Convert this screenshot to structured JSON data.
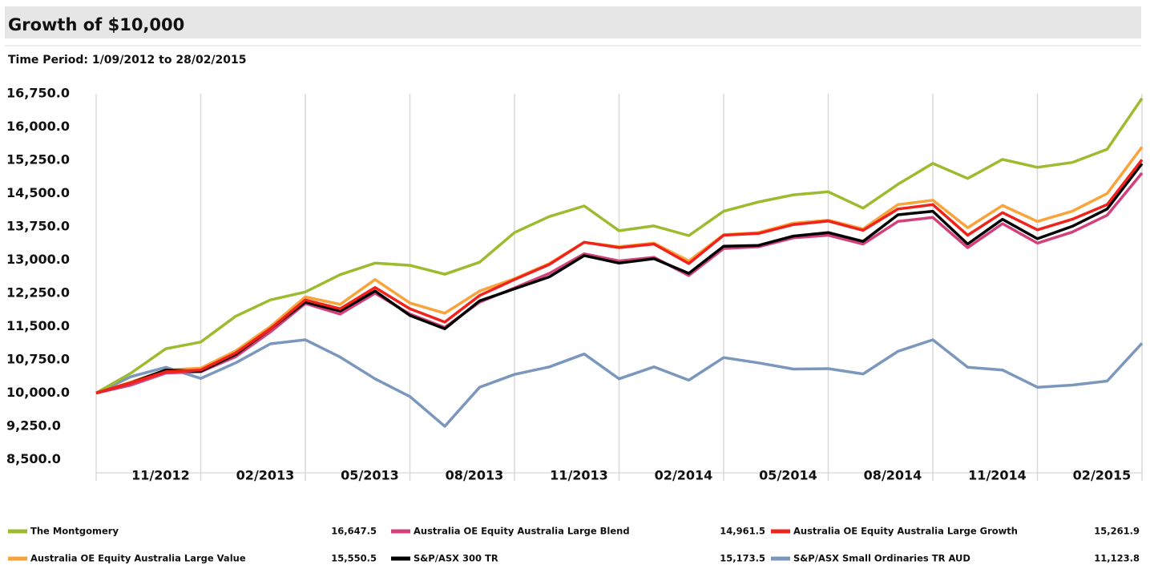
{
  "chart_data": {
    "type": "line",
    "title": "Growth of $10,000",
    "subtitle": "Time Period: 1/09/2012 to 28/02/2015",
    "x": [
      0,
      1,
      2,
      3,
      4,
      5,
      6,
      7,
      8,
      9,
      10,
      11,
      12,
      13,
      14,
      15,
      16,
      17,
      18,
      19,
      20,
      21,
      22,
      23,
      24,
      25,
      26,
      27,
      28,
      29,
      30
    ],
    "xlim": [
      0,
      30
    ],
    "xticks": [
      {
        "value": 3,
        "label": "11/2012"
      },
      {
        "value": 6,
        "label": "02/2013"
      },
      {
        "value": 9,
        "label": "05/2013"
      },
      {
        "value": 12,
        "label": "08/2013"
      },
      {
        "value": 15,
        "label": "11/2013"
      },
      {
        "value": 18,
        "label": "02/2014"
      },
      {
        "value": 21,
        "label": "05/2014"
      },
      {
        "value": 24,
        "label": "08/2014"
      },
      {
        "value": 27,
        "label": "11/2014"
      },
      {
        "value": 30,
        "label": "02/2015"
      }
    ],
    "ylim": [
      8200,
      16750
    ],
    "yticks": [
      {
        "value": 8500,
        "label": "8,500.0"
      },
      {
        "value": 9250,
        "label": "9,250.0"
      },
      {
        "value": 10000,
        "label": "10,000.0"
      },
      {
        "value": 10750,
        "label": "10,750.0"
      },
      {
        "value": 11500,
        "label": "11,500.0"
      },
      {
        "value": 12250,
        "label": "12,250.0"
      },
      {
        "value": 13000,
        "label": "13,000.0"
      },
      {
        "value": 13750,
        "label": "13,750.0"
      },
      {
        "value": 14500,
        "label": "14,500.0"
      },
      {
        "value": 15250,
        "label": "15,250.0"
      },
      {
        "value": 16000,
        "label": "16,000.0"
      },
      {
        "value": 16750,
        "label": "16,750.0"
      }
    ],
    "grid": "x",
    "legend": "bottom",
    "series": [
      {
        "name": "The Montgomery",
        "color": "#9dbb2f",
        "end_label": "16,647.5",
        "values": [
          10000,
          10450,
          11000,
          11150,
          11730,
          12100,
          12280,
          12670,
          12930,
          12880,
          12680,
          12950,
          13620,
          13980,
          14220,
          13660,
          13770,
          13550,
          14100,
          14310,
          14470,
          14540,
          14170,
          14710,
          15180,
          14840,
          15270,
          15090,
          15200,
          15500,
          16647.5
        ]
      },
      {
        "name": "Australia OE Equity Australia Large Blend",
        "color": "#d2417a",
        "end_label": "14,961.5",
        "values": [
          10000,
          10180,
          10450,
          10480,
          10820,
          11380,
          12020,
          11780,
          12250,
          11780,
          11480,
          12050,
          12370,
          12700,
          13140,
          12980,
          13060,
          12650,
          13260,
          13300,
          13500,
          13560,
          13360,
          13870,
          13960,
          13280,
          13820,
          13380,
          13630,
          14010,
          14961.5
        ]
      },
      {
        "name": "Australia OE Equity Australia Large Growth",
        "color": "#f0231c",
        "end_label": "15,261.9",
        "values": [
          10000,
          10230,
          10480,
          10520,
          10900,
          11450,
          12100,
          11900,
          12380,
          11900,
          11600,
          12200,
          12560,
          12900,
          13400,
          13280,
          13360,
          12920,
          13560,
          13600,
          13800,
          13880,
          13670,
          14150,
          14250,
          13560,
          14070,
          13680,
          13920,
          14250,
          15261.9
        ]
      },
      {
        "name": "Australia OE Equity Australia Large Value",
        "color": "#f9a33a",
        "end_label": "15,550.5",
        "values": [
          10000,
          10250,
          10520,
          10560,
          10950,
          11500,
          12170,
          12000,
          12560,
          12030,
          11800,
          12300,
          12580,
          12920,
          13400,
          13300,
          13380,
          12980,
          13570,
          13620,
          13830,
          13900,
          13700,
          14250,
          14350,
          13730,
          14230,
          13870,
          14100,
          14500,
          15550.5
        ]
      },
      {
        "name": "S&P/ASX 300 TR",
        "color": "#000000",
        "end_label": "15,173.5",
        "values": [
          10000,
          10230,
          10520,
          10490,
          10870,
          11450,
          12050,
          11850,
          12300,
          11750,
          11450,
          12080,
          12350,
          12620,
          13100,
          12930,
          13030,
          12700,
          13310,
          13330,
          13540,
          13620,
          13420,
          14020,
          14100,
          13360,
          13920,
          13480,
          13760,
          14150,
          15173.5
        ]
      },
      {
        "name": "S&P/ASX Small Ordinaries TR AUD",
        "color": "#7b97bd",
        "end_label": "11,123.8",
        "values": [
          10000,
          10370,
          10580,
          10330,
          10680,
          11110,
          11200,
          10810,
          10320,
          9920,
          9250,
          10130,
          10420,
          10590,
          10880,
          10320,
          10590,
          10290,
          10800,
          10680,
          10540,
          10550,
          10430,
          10940,
          11200,
          10580,
          10520,
          10130,
          10180,
          10270,
          11123.8
        ]
      }
    ]
  }
}
